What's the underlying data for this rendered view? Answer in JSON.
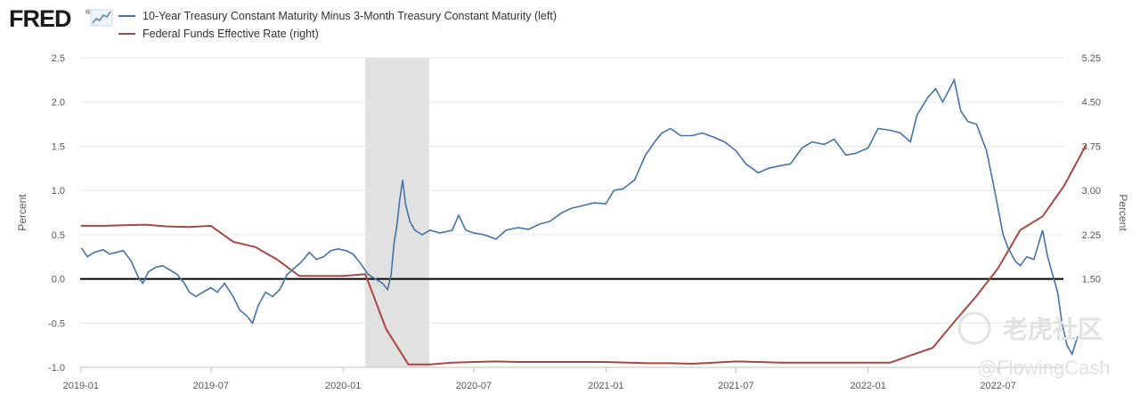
{
  "logo": {
    "text": "FRED",
    "registered": "®"
  },
  "watermark": {
    "line1": "老虎社区",
    "line2": "@FlowingCash"
  },
  "colors": {
    "series_left": "#4572a7",
    "series_right": "#aa4643",
    "recession": "#e1e1e1",
    "zero_line": "#000000"
  },
  "chart_data": {
    "type": "line",
    "x_ticks": [
      "2019-01",
      "2019-07",
      "2020-01",
      "2020-07",
      "2021-01",
      "2021-07",
      "2022-01",
      "2022-07"
    ],
    "x_range": [
      "2018-12-31",
      "2022-09-30"
    ],
    "y_left": {
      "label": "Percent",
      "range": [
        -1.0,
        2.5
      ],
      "ticks": [
        "2.5",
        "2.0",
        "1.5",
        "1.0",
        "0.5",
        "0.0",
        "-0.5",
        "-1.0"
      ]
    },
    "y_right": {
      "label": "Percent",
      "range": [
        0.0,
        5.25
      ],
      "ticks": [
        "5.25",
        "4.50",
        "3.75",
        "3.00",
        "2.25",
        "1.50"
      ]
    },
    "recession": {
      "start": "2020-02-01",
      "end": "2020-04-30"
    },
    "zero_line": 0,
    "series": [
      {
        "name": "10-Year Treasury Constant Maturity Minus 3-Month Treasury Constant Maturity (left)",
        "axis": "left",
        "points": [
          [
            "2019-01-02",
            0.35
          ],
          [
            "2019-01-10",
            0.25
          ],
          [
            "2019-01-20",
            0.3
          ],
          [
            "2019-02-01",
            0.33
          ],
          [
            "2019-02-10",
            0.28
          ],
          [
            "2019-02-20",
            0.3
          ],
          [
            "2019-03-01",
            0.32
          ],
          [
            "2019-03-12",
            0.2
          ],
          [
            "2019-03-22",
            0.02
          ],
          [
            "2019-03-28",
            -0.05
          ],
          [
            "2019-04-05",
            0.08
          ],
          [
            "2019-04-15",
            0.13
          ],
          [
            "2019-04-25",
            0.15
          ],
          [
            "2019-05-05",
            0.1
          ],
          [
            "2019-05-15",
            0.05
          ],
          [
            "2019-05-25",
            -0.05
          ],
          [
            "2019-06-01",
            -0.15
          ],
          [
            "2019-06-10",
            -0.2
          ],
          [
            "2019-06-20",
            -0.15
          ],
          [
            "2019-07-01",
            -0.1
          ],
          [
            "2019-07-10",
            -0.15
          ],
          [
            "2019-07-20",
            -0.05
          ],
          [
            "2019-08-01",
            -0.2
          ],
          [
            "2019-08-10",
            -0.35
          ],
          [
            "2019-08-20",
            -0.42
          ],
          [
            "2019-08-28",
            -0.5
          ],
          [
            "2019-09-05",
            -0.3
          ],
          [
            "2019-09-15",
            -0.15
          ],
          [
            "2019-09-25",
            -0.2
          ],
          [
            "2019-10-05",
            -0.12
          ],
          [
            "2019-10-15",
            0.05
          ],
          [
            "2019-10-25",
            0.12
          ],
          [
            "2019-11-05",
            0.2
          ],
          [
            "2019-11-15",
            0.3
          ],
          [
            "2019-11-25",
            0.22
          ],
          [
            "2019-12-05",
            0.25
          ],
          [
            "2019-12-15",
            0.32
          ],
          [
            "2019-12-25",
            0.34
          ],
          [
            "2020-01-05",
            0.32
          ],
          [
            "2020-01-15",
            0.28
          ],
          [
            "2020-01-25",
            0.18
          ],
          [
            "2020-02-05",
            0.05
          ],
          [
            "2020-02-15",
            0.0
          ],
          [
            "2020-02-25",
            -0.05
          ],
          [
            "2020-03-03",
            -0.12
          ],
          [
            "2020-03-08",
            0.05
          ],
          [
            "2020-03-12",
            0.4
          ],
          [
            "2020-03-16",
            0.6
          ],
          [
            "2020-03-20",
            0.9
          ],
          [
            "2020-03-24",
            1.12
          ],
          [
            "2020-03-28",
            0.85
          ],
          [
            "2020-04-03",
            0.65
          ],
          [
            "2020-04-10",
            0.55
          ],
          [
            "2020-04-20",
            0.5
          ],
          [
            "2020-05-01",
            0.55
          ],
          [
            "2020-05-15",
            0.52
          ],
          [
            "2020-06-01",
            0.55
          ],
          [
            "2020-06-10",
            0.72
          ],
          [
            "2020-06-20",
            0.55
          ],
          [
            "2020-07-01",
            0.52
          ],
          [
            "2020-07-15",
            0.5
          ],
          [
            "2020-08-01",
            0.45
          ],
          [
            "2020-08-15",
            0.55
          ],
          [
            "2020-09-01",
            0.58
          ],
          [
            "2020-09-15",
            0.56
          ],
          [
            "2020-10-01",
            0.62
          ],
          [
            "2020-10-15",
            0.65
          ],
          [
            "2020-11-01",
            0.75
          ],
          [
            "2020-11-15",
            0.8
          ],
          [
            "2020-12-01",
            0.83
          ],
          [
            "2020-12-15",
            0.86
          ],
          [
            "2021-01-01",
            0.85
          ],
          [
            "2021-01-12",
            1.0
          ],
          [
            "2021-01-25",
            1.02
          ],
          [
            "2021-02-10",
            1.12
          ],
          [
            "2021-02-25",
            1.4
          ],
          [
            "2021-03-10",
            1.55
          ],
          [
            "2021-03-20",
            1.65
          ],
          [
            "2021-04-01",
            1.7
          ],
          [
            "2021-04-15",
            1.62
          ],
          [
            "2021-05-01",
            1.62
          ],
          [
            "2021-05-15",
            1.65
          ],
          [
            "2021-06-01",
            1.6
          ],
          [
            "2021-06-15",
            1.55
          ],
          [
            "2021-07-01",
            1.45
          ],
          [
            "2021-07-15",
            1.3
          ],
          [
            "2021-08-01",
            1.2
          ],
          [
            "2021-08-15",
            1.25
          ],
          [
            "2021-09-01",
            1.28
          ],
          [
            "2021-09-15",
            1.3
          ],
          [
            "2021-10-01",
            1.48
          ],
          [
            "2021-10-15",
            1.55
          ],
          [
            "2021-11-01",
            1.52
          ],
          [
            "2021-11-15",
            1.58
          ],
          [
            "2021-12-01",
            1.4
          ],
          [
            "2021-12-15",
            1.42
          ],
          [
            "2022-01-01",
            1.48
          ],
          [
            "2022-01-15",
            1.7
          ],
          [
            "2022-02-01",
            1.68
          ],
          [
            "2022-02-15",
            1.65
          ],
          [
            "2022-03-01",
            1.55
          ],
          [
            "2022-03-10",
            1.85
          ],
          [
            "2022-03-25",
            2.05
          ],
          [
            "2022-04-05",
            2.15
          ],
          [
            "2022-04-15",
            2.0
          ],
          [
            "2022-05-01",
            2.25
          ],
          [
            "2022-05-10",
            1.9
          ],
          [
            "2022-05-20",
            1.78
          ],
          [
            "2022-06-01",
            1.75
          ],
          [
            "2022-06-15",
            1.45
          ],
          [
            "2022-06-25",
            1.05
          ],
          [
            "2022-07-01",
            0.8
          ],
          [
            "2022-07-08",
            0.5
          ],
          [
            "2022-07-15",
            0.35
          ],
          [
            "2022-07-25",
            0.2
          ],
          [
            "2022-08-01",
            0.15
          ],
          [
            "2022-08-10",
            0.25
          ],
          [
            "2022-08-20",
            0.22
          ],
          [
            "2022-09-01",
            0.55
          ],
          [
            "2022-09-08",
            0.25
          ],
          [
            "2022-09-15",
            0.05
          ],
          [
            "2022-09-22",
            -0.15
          ],
          [
            "2022-09-28",
            -0.5
          ],
          [
            "2022-10-05",
            -0.75
          ],
          [
            "2022-10-12",
            -0.85
          ],
          [
            "2022-10-20",
            -0.65
          ]
        ]
      },
      {
        "name": "Federal Funds Effective Rate (right)",
        "axis": "right",
        "points": [
          [
            "2019-01-01",
            2.4
          ],
          [
            "2019-02-01",
            2.4
          ],
          [
            "2019-03-01",
            2.41
          ],
          [
            "2019-04-01",
            2.42
          ],
          [
            "2019-05-01",
            2.39
          ],
          [
            "2019-06-01",
            2.38
          ],
          [
            "2019-07-01",
            2.4
          ],
          [
            "2019-08-01",
            2.13
          ],
          [
            "2019-09-01",
            2.04
          ],
          [
            "2019-10-01",
            1.83
          ],
          [
            "2019-11-01",
            1.55
          ],
          [
            "2019-12-01",
            1.55
          ],
          [
            "2020-01-01",
            1.55
          ],
          [
            "2020-02-01",
            1.58
          ],
          [
            "2020-03-01",
            0.65
          ],
          [
            "2020-04-01",
            0.05
          ],
          [
            "2020-05-01",
            0.05
          ],
          [
            "2020-06-01",
            0.08
          ],
          [
            "2020-07-01",
            0.09
          ],
          [
            "2020-08-01",
            0.1
          ],
          [
            "2020-09-01",
            0.09
          ],
          [
            "2020-10-01",
            0.09
          ],
          [
            "2020-11-01",
            0.09
          ],
          [
            "2020-12-01",
            0.09
          ],
          [
            "2021-01-01",
            0.09
          ],
          [
            "2021-02-01",
            0.08
          ],
          [
            "2021-03-01",
            0.07
          ],
          [
            "2021-04-01",
            0.07
          ],
          [
            "2021-05-01",
            0.06
          ],
          [
            "2021-06-01",
            0.08
          ],
          [
            "2021-07-01",
            0.1
          ],
          [
            "2021-08-01",
            0.09
          ],
          [
            "2021-09-01",
            0.08
          ],
          [
            "2021-10-01",
            0.08
          ],
          [
            "2021-11-01",
            0.08
          ],
          [
            "2021-12-01",
            0.08
          ],
          [
            "2022-01-01",
            0.08
          ],
          [
            "2022-02-01",
            0.08
          ],
          [
            "2022-03-01",
            0.2
          ],
          [
            "2022-04-01",
            0.33
          ],
          [
            "2022-05-01",
            0.77
          ],
          [
            "2022-06-01",
            1.21
          ],
          [
            "2022-07-01",
            1.68
          ],
          [
            "2022-08-01",
            2.33
          ],
          [
            "2022-09-01",
            2.56
          ],
          [
            "2022-10-01",
            3.08
          ],
          [
            "2022-11-01",
            3.78
          ]
        ]
      }
    ]
  }
}
